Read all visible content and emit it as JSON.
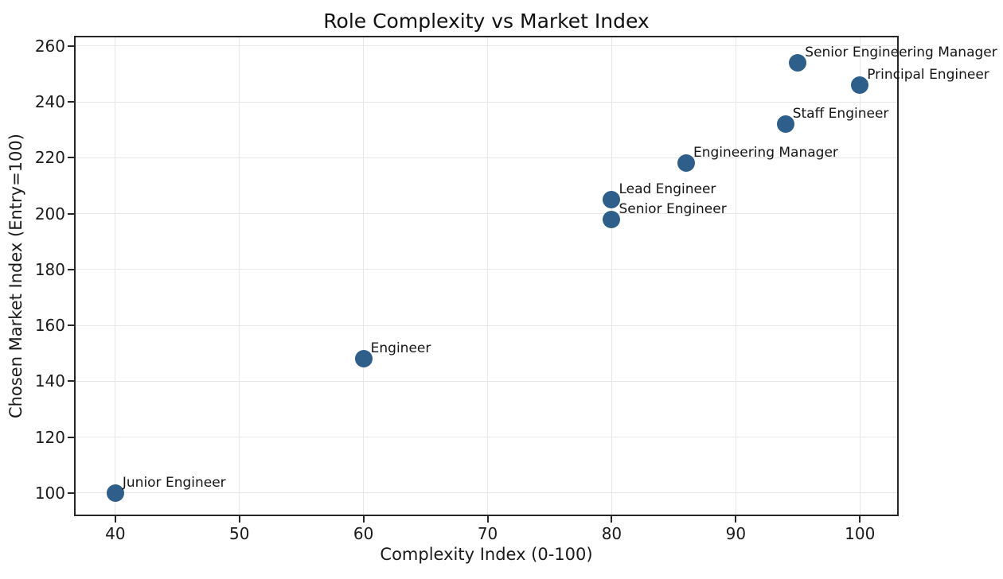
{
  "chart_data": {
    "type": "scatter",
    "title": "Role Complexity vs Market Index",
    "xlabel": "Complexity Index (0-100)",
    "ylabel": "Chosen Market Index (Entry=100)",
    "x_ticks": [
      40,
      50,
      60,
      70,
      80,
      90,
      100
    ],
    "y_ticks": [
      100,
      120,
      140,
      160,
      180,
      200,
      220,
      240,
      260
    ],
    "xlim": [
      36.8,
      103.0
    ],
    "ylim": [
      92.3,
      263.1
    ],
    "grid": true,
    "legend": false,
    "points": [
      {
        "label": "Junior Engineer",
        "x": 40,
        "y": 100
      },
      {
        "label": "Engineer",
        "x": 60,
        "y": 148
      },
      {
        "label": "Senior Engineer",
        "x": 80,
        "y": 198
      },
      {
        "label": "Lead Engineer",
        "x": 80,
        "y": 205
      },
      {
        "label": "Engineering Manager",
        "x": 86,
        "y": 218
      },
      {
        "label": "Staff Engineer",
        "x": 94,
        "y": 232
      },
      {
        "label": "Senior Engineering Manager",
        "x": 95,
        "y": 254
      },
      {
        "label": "Principal Engineer",
        "x": 100,
        "y": 246
      }
    ],
    "style": {
      "marker_color": "#2e5e8a",
      "grid_color": "#e7e7e7",
      "spine_color": "#262626",
      "tick_color": "#262626",
      "background": "#ffffff"
    }
  }
}
